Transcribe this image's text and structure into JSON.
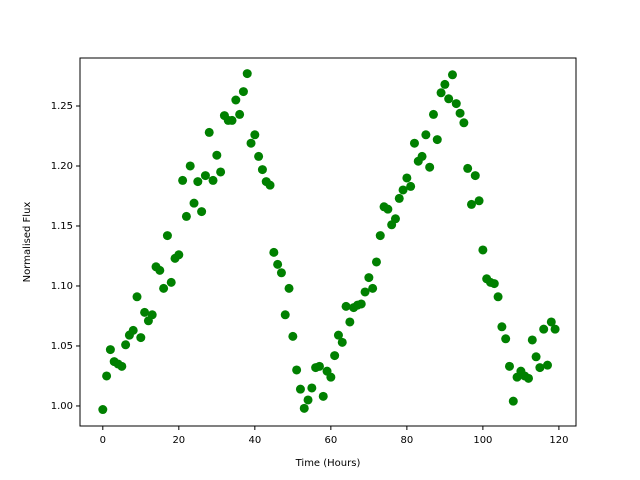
{
  "chart_data": {
    "type": "scatter",
    "x_label": "Time (Hours)",
    "y_label": "Normalised Flux",
    "x": [
      0,
      1,
      2,
      3,
      4,
      5,
      6,
      7,
      8,
      9,
      10,
      11,
      12,
      13,
      14,
      15,
      16,
      17,
      18,
      19,
      20,
      21,
      22,
      23,
      24,
      25,
      26,
      27,
      28,
      29,
      30,
      31,
      32,
      33,
      34,
      35,
      36,
      37,
      38,
      39,
      40,
      41,
      42,
      43,
      44,
      45,
      46,
      47,
      48,
      49,
      50,
      51,
      52,
      53,
      54,
      55,
      56,
      57,
      58,
      59,
      60,
      61,
      62,
      63,
      64,
      65,
      66,
      67,
      68,
      69,
      70,
      71,
      72,
      73,
      74,
      75,
      76,
      77,
      78,
      79,
      80,
      81,
      82,
      83,
      84,
      85,
      86,
      87,
      88,
      89,
      90,
      91,
      92,
      93,
      94,
      95,
      96,
      97,
      98,
      99,
      100,
      101,
      102,
      103,
      104,
      105,
      106,
      107,
      108,
      109,
      110,
      111,
      112,
      113,
      114,
      115,
      116,
      117,
      118,
      119
    ],
    "series": [
      {
        "color": "#008000",
        "values": [
          0.997,
          1.025,
          1.047,
          1.037,
          1.035,
          1.033,
          1.051,
          1.059,
          1.063,
          1.091,
          1.057,
          1.078,
          1.071,
          1.076,
          1.116,
          1.113,
          1.098,
          1.142,
          1.103,
          1.123,
          1.126,
          1.188,
          1.158,
          1.2,
          1.169,
          1.187,
          1.162,
          1.192,
          1.228,
          1.188,
          1.209,
          1.195,
          1.242,
          1.238,
          1.238,
          1.255,
          1.243,
          1.262,
          1.277,
          1.219,
          1.226,
          1.208,
          1.197,
          1.187,
          1.184,
          1.128,
          1.118,
          1.111,
          1.076,
          1.098,
          1.058,
          1.03,
          1.014,
          0.998,
          1.005,
          1.015,
          1.032,
          1.033,
          1.008,
          1.029,
          1.024,
          1.042,
          1.059,
          1.053,
          1.083,
          1.07,
          1.082,
          1.084,
          1.085,
          1.095,
          1.107,
          1.098,
          1.12,
          1.142,
          1.166,
          1.164,
          1.151,
          1.156,
          1.173,
          1.18,
          1.19,
          1.183,
          1.219,
          1.204,
          1.208,
          1.226,
          1.199,
          1.243,
          1.222,
          1.261,
          1.268,
          1.256,
          1.276,
          1.252,
          1.244,
          1.236,
          1.198,
          1.168,
          1.192,
          1.171,
          1.13,
          1.106,
          1.103,
          1.102,
          1.091,
          1.066,
          1.056,
          1.033,
          1.004,
          1.024,
          1.029,
          1.025,
          1.023,
          1.055,
          1.041,
          1.032,
          1.064,
          1.034,
          1.07,
          1.064
        ]
      }
    ],
    "xlim": [
      -6,
      124.5
    ],
    "ylim": [
      0.9833,
      1.29
    ],
    "xticks": [
      0,
      20,
      40,
      60,
      80,
      100,
      120
    ],
    "yticks": [
      {
        "value": 1.0,
        "label": "1.00"
      },
      1.05,
      {
        "value": 1.1,
        "label": "1.10"
      },
      1.15,
      {
        "value": 1.2,
        "label": "1.20"
      },
      1.25
    ]
  }
}
